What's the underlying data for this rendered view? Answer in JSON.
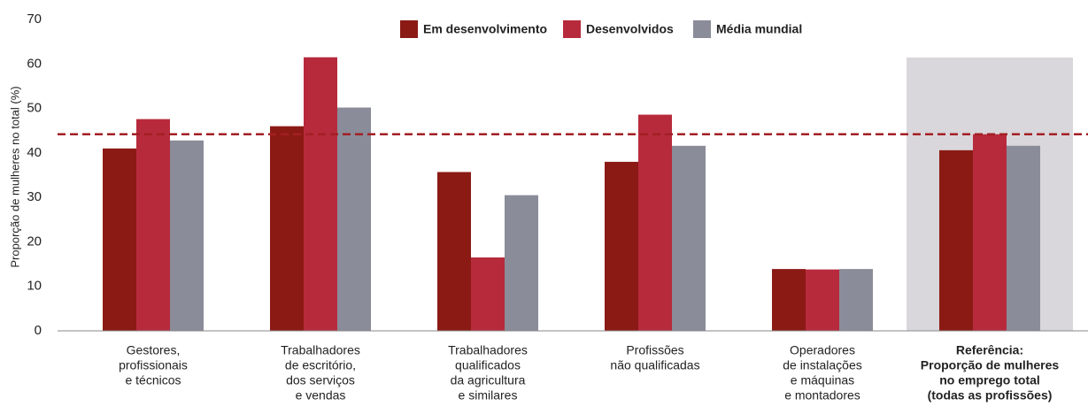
{
  "chart_data": {
    "type": "bar",
    "y_label": "Proporção de mulheres no total (%)",
    "categories": [
      [
        "Gestores,",
        "profissionais",
        "e técnicos"
      ],
      [
        "Trabalhadores",
        "de escritório,",
        "dos serviços",
        "e vendas"
      ],
      [
        "Trabalhadores",
        "qualificados",
        "da agricultura",
        "e similares"
      ],
      [
        "Profissões",
        "não qualificadas"
      ],
      [
        "Operadores",
        "de instalações",
        "e máquinas",
        "e montadores"
      ],
      [
        "Referência:",
        "Proporção de mulheres",
        "no emprego total",
        "(todas as profissões)"
      ]
    ],
    "series": [
      {
        "name": "Em desenvolvimento",
        "color": "#8b1a14",
        "values": [
          41.0,
          46.0,
          35.7,
          38.0,
          13.9,
          40.6
        ]
      },
      {
        "name": "Desenvolvidos",
        "color": "#b72a3c",
        "values": [
          47.6,
          61.5,
          16.5,
          48.6,
          13.8,
          44.2
        ]
      },
      {
        "name": "Média mundial",
        "color": "#8a8c99",
        "values": [
          42.8,
          50.2,
          30.5,
          41.6,
          13.9,
          41.6
        ]
      }
    ],
    "reference_line": 44.2,
    "reference_color": "#a31f24",
    "highlight": 5,
    "ylim": [
      0,
      70
    ],
    "yticks": [
      0,
      10,
      20,
      30,
      40,
      50,
      60,
      70
    ],
    "legend": "top"
  }
}
